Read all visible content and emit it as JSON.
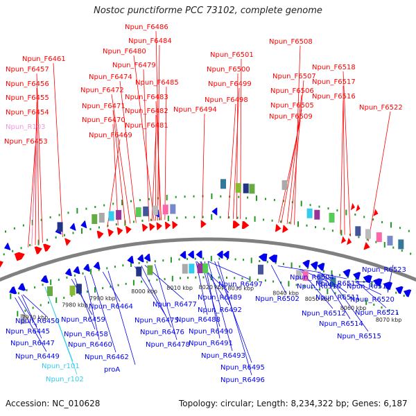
{
  "header": {
    "title": "Nostoc punctiforme PCC 73102, complete genome"
  },
  "footer": {
    "accession": "Accession: NC_010628",
    "summary": "Topology: circular; Length: 8,234,322 bp; Genes: 6,187"
  },
  "colors": {
    "forward_gene": "#ff0000",
    "reverse_gene": "#0000ee",
    "rna_gene": "#ee99dd",
    "trna_gene": "#33ccee",
    "backbone": "#808080",
    "tick_mark": "#229922"
  },
  "scale_labels": [
    "7970 kbp",
    "7980 kbp",
    "7990 kbp",
    "8000 kbp",
    "8010 kbp",
    "8020 kbp",
    "8030 kbp",
    "8040 kbp",
    "8050 kbp",
    "8060 kbp",
    "8070 kbp"
  ],
  "forward_labels": [
    {
      "text": "Npun_F6486",
      "color": "red"
    },
    {
      "text": "Npun_F6484",
      "color": "red"
    },
    {
      "text": "Npun_F6508",
      "color": "red"
    },
    {
      "text": "Npun_F6480",
      "color": "red"
    },
    {
      "text": "Npun_F6501",
      "color": "red"
    },
    {
      "text": "Npun_F6461",
      "color": "red"
    },
    {
      "text": "Npun_F6479",
      "color": "red"
    },
    {
      "text": "Npun_F6500",
      "color": "red"
    },
    {
      "text": "Npun_F6518",
      "color": "red"
    },
    {
      "text": "Npun_F6457",
      "color": "red"
    },
    {
      "text": "Npun_F6474",
      "color": "red"
    },
    {
      "text": "Npun_F6507",
      "color": "red"
    },
    {
      "text": "Npun_F6456",
      "color": "red"
    },
    {
      "text": "Npun_F6485",
      "color": "red"
    },
    {
      "text": "Npun_F6499",
      "color": "red"
    },
    {
      "text": "Npun_F6517",
      "color": "red"
    },
    {
      "text": "Npun_F6472",
      "color": "red"
    },
    {
      "text": "Npun_F6506",
      "color": "red"
    },
    {
      "text": "Npun_F6455",
      "color": "red"
    },
    {
      "text": "Npun_F6483",
      "color": "red"
    },
    {
      "text": "Npun_F6498",
      "color": "red"
    },
    {
      "text": "Npun_F6516",
      "color": "red"
    },
    {
      "text": "Npun_F6471",
      "color": "red"
    },
    {
      "text": "Npun_F6505",
      "color": "red"
    },
    {
      "text": "Npun_F6482",
      "color": "red"
    },
    {
      "text": "Npun_F6494",
      "color": "red"
    },
    {
      "text": "Npun_F6522",
      "color": "red"
    },
    {
      "text": "Npun_F6454",
      "color": "red"
    },
    {
      "text": "Npun_F6470",
      "color": "red"
    },
    {
      "text": "Npun_F6509",
      "color": "red"
    },
    {
      "text": "Npun_F6481",
      "color": "red"
    },
    {
      "text": "Npun_R103",
      "color": "pink"
    },
    {
      "text": "Npun_F6469",
      "color": "red"
    },
    {
      "text": "Npun_F6453",
      "color": "red"
    }
  ],
  "reverse_labels": [
    {
      "text": "Npun_R6523",
      "color": "blue"
    },
    {
      "text": "Npun_R6504",
      "color": "blue"
    },
    {
      "text": "Npun_R6513",
      "color": "blue"
    },
    {
      "text": "Npun_R6497",
      "color": "blue"
    },
    {
      "text": "Npun_R6510",
      "color": "blue"
    },
    {
      "text": "Npun_R6519",
      "color": "blue"
    },
    {
      "text": "Npun_R6502",
      "color": "blue"
    },
    {
      "text": "Npun_R6511",
      "color": "blue"
    },
    {
      "text": "Npun_R6520",
      "color": "blue"
    },
    {
      "text": "Npun_R6489",
      "color": "blue"
    },
    {
      "text": "Npun_R6477",
      "color": "blue"
    },
    {
      "text": "Npun_R6464",
      "color": "blue"
    },
    {
      "text": "Npun_R6492",
      "color": "blue"
    },
    {
      "text": "Npun_R6512",
      "color": "blue"
    },
    {
      "text": "Npun_R6521",
      "color": "blue"
    },
    {
      "text": "Npun_R6450",
      "color": "blue"
    },
    {
      "text": "Npun_R6459",
      "color": "blue"
    },
    {
      "text": "Npun_R6475",
      "color": "blue"
    },
    {
      "text": "Npun_R6488",
      "color": "blue"
    },
    {
      "text": "Npun_R6514",
      "color": "blue"
    },
    {
      "text": "Npun_R6445",
      "color": "blue"
    },
    {
      "text": "Npun_R6458",
      "color": "blue"
    },
    {
      "text": "Npun_R6476",
      "color": "blue"
    },
    {
      "text": "Npun_R6490",
      "color": "blue"
    },
    {
      "text": "Npun_R6515",
      "color": "blue"
    },
    {
      "text": "Npun_R6447",
      "color": "blue"
    },
    {
      "text": "Npun_R6460",
      "color": "blue"
    },
    {
      "text": "Npun_R6478",
      "color": "blue"
    },
    {
      "text": "Npun_R6491",
      "color": "blue"
    },
    {
      "text": "Npun_R6449",
      "color": "blue"
    },
    {
      "text": "Npun_R6462",
      "color": "blue"
    },
    {
      "text": "Npun_R6493",
      "color": "blue"
    },
    {
      "text": "Npun_r101",
      "color": "cyan"
    },
    {
      "text": "proA",
      "color": "blue"
    },
    {
      "text": "Npun_R6495",
      "color": "blue"
    },
    {
      "text": "Npun_r102",
      "color": "cyan"
    },
    {
      "text": "Npun_R6496",
      "color": "blue"
    }
  ]
}
